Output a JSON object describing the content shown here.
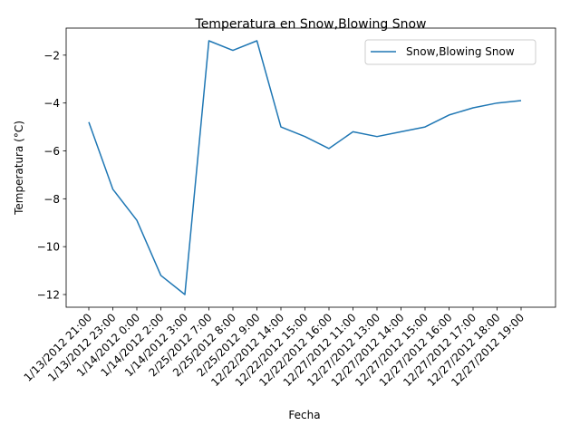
{
  "chart_data": {
    "type": "line",
    "title": "Temperatura en Snow,Blowing Snow",
    "xlabel": "Fecha",
    "ylabel": "Temperatura (°C)",
    "categories": [
      "1/13/2012 21:00",
      "1/13/2012 23:00",
      "1/14/2012 0:00",
      "1/14/2012 2:00",
      "1/14/2012 3:00",
      "2/25/2012 7:00",
      "2/25/2012 8:00",
      "2/25/2012 9:00",
      "12/22/2012 14:00",
      "12/22/2012 15:00",
      "12/22/2012 16:00",
      "12/27/2012 11:00",
      "12/27/2012 13:00",
      "12/27/2012 14:00",
      "12/27/2012 15:00",
      "12/27/2012 16:00",
      "12/27/2012 17:00",
      "12/27/2012 18:00",
      "12/27/2012 19:00"
    ],
    "series": [
      {
        "name": "Snow,Blowing Snow",
        "color": "#1f77b4",
        "values": [
          -4.8,
          -7.6,
          -8.9,
          -11.2,
          -12.0,
          -1.4,
          -1.8,
          -1.4,
          -5.0,
          -5.4,
          -5.9,
          -5.2,
          -5.4,
          -5.2,
          -5.0,
          -4.5,
          -4.2,
          -4.0,
          -3.9
        ]
      }
    ],
    "yticks": [
      -12,
      -10,
      -8,
      -6,
      -4,
      -2
    ],
    "ylim": [
      -12.53,
      -0.87
    ],
    "grid": false,
    "legend_position": "top-right",
    "xtick_rotation": 45
  }
}
